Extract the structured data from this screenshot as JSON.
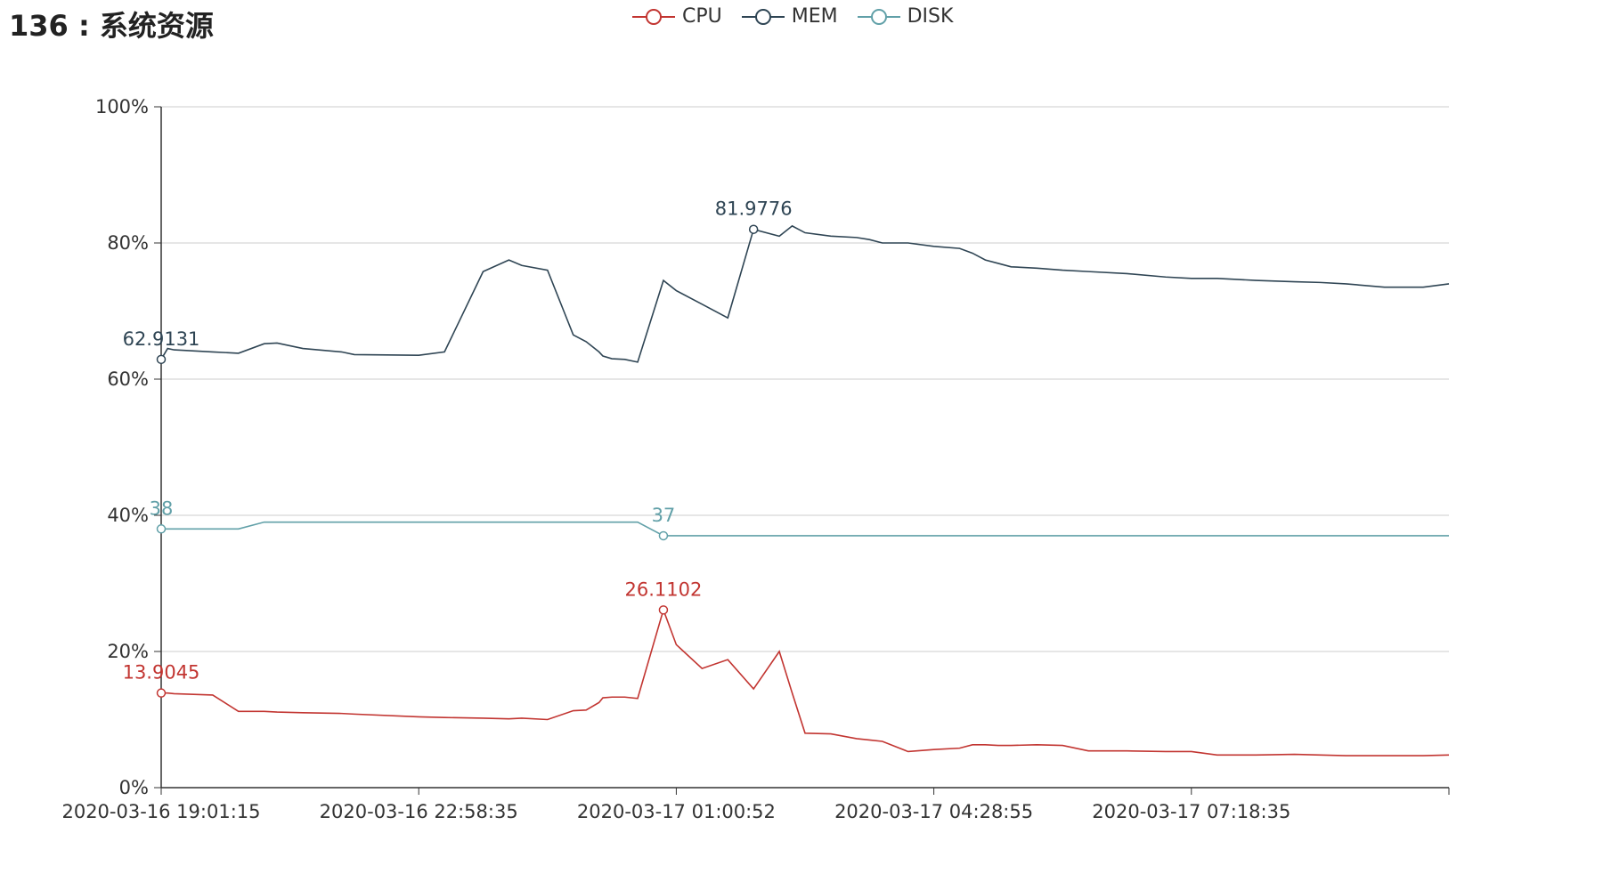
{
  "header": {
    "title": "136 : 系统资源"
  },
  "legend": [
    {
      "name": "CPU",
      "color": "#c23531"
    },
    {
      "name": "MEM",
      "color": "#2f4554"
    },
    {
      "name": "DISK",
      "color": "#61a0a8"
    }
  ],
  "chart_data": {
    "type": "line",
    "title": "136 : 系统资源",
    "xlabel": "",
    "ylabel": "",
    "ylim": [
      0,
      100
    ],
    "y_ticks": [
      "0%",
      "20%",
      "40%",
      "60%",
      "80%",
      "100%"
    ],
    "x_tick_labels": [
      "2020-03-16 19:01:15",
      "2020-03-16 22:58:35",
      "2020-03-17 01:00:52",
      "2020-03-17 04:28:55",
      "2020-03-17 07:18:35"
    ],
    "x": [
      0,
      0.5,
      1,
      4,
      6,
      8,
      9,
      11,
      14,
      15,
      20,
      22,
      25,
      27,
      28,
      30,
      32,
      33,
      34,
      34.3,
      35,
      36,
      37,
      39,
      40,
      42,
      44,
      46,
      48,
      49,
      50,
      52,
      54,
      55,
      56,
      58,
      60,
      62,
      63,
      64,
      65,
      66,
      68,
      70,
      72,
      75,
      78,
      80,
      82,
      85,
      88,
      90,
      92,
      95,
      98,
      100
    ],
    "series": [
      {
        "name": "CPU",
        "color": "#c23531",
        "values": [
          13.9,
          13.9,
          13.8,
          13.6,
          11.2,
          11.2,
          11.1,
          11.0,
          10.9,
          10.8,
          10.4,
          10.3,
          10.2,
          10.1,
          10.2,
          10.0,
          11.3,
          11.4,
          12.5,
          13.2,
          13.3,
          13.3,
          13.1,
          26.1,
          21.0,
          17.5,
          18.8,
          14.5,
          20.0,
          13.9,
          8.0,
          7.9,
          7.2,
          7.0,
          6.8,
          5.3,
          5.6,
          5.8,
          6.3,
          6.3,
          6.2,
          6.2,
          6.3,
          6.2,
          5.4,
          5.4,
          5.3,
          5.3,
          4.8,
          4.8,
          4.9,
          4.8,
          4.7,
          4.7,
          4.7,
          4.8
        ],
        "labels": [
          {
            "index": 0,
            "text": "13.9045"
          },
          {
            "index": 23,
            "text": "26.1102"
          }
        ]
      },
      {
        "name": "MEM",
        "color": "#2f4554",
        "values": [
          62.9,
          64.5,
          64.3,
          64.0,
          63.8,
          65.2,
          65.3,
          64.5,
          64.0,
          63.6,
          63.5,
          64.0,
          75.8,
          77.5,
          76.7,
          76.0,
          66.5,
          65.5,
          64.0,
          63.4,
          63.0,
          62.9,
          62.5,
          74.5,
          73.0,
          71.0,
          69.0,
          82.0,
          81.0,
          82.5,
          81.5,
          81.0,
          80.8,
          80.5,
          80.0,
          80.0,
          79.5,
          79.2,
          78.5,
          77.5,
          77.0,
          76.5,
          76.3,
          76.0,
          75.8,
          75.5,
          75.0,
          74.8,
          74.8,
          74.5,
          74.3,
          74.2,
          74.0,
          73.5,
          73.5,
          74.0
        ],
        "labels": [
          {
            "index": 0,
            "text": "62.9131"
          },
          {
            "index": 27,
            "text": "81.9776"
          }
        ]
      },
      {
        "name": "DISK",
        "color": "#61a0a8",
        "values": [
          38,
          38,
          38,
          38,
          38,
          39,
          39,
          39,
          39,
          39,
          39,
          39,
          39,
          39,
          39,
          39,
          39,
          39,
          39,
          39,
          39,
          39,
          39,
          37,
          37,
          37,
          37,
          37,
          37,
          37,
          37,
          37,
          37,
          37,
          37,
          37,
          37,
          37,
          37,
          37,
          37,
          37,
          37,
          37,
          37,
          37,
          37,
          37,
          37,
          37,
          37,
          37,
          37,
          37,
          37,
          37
        ],
        "labels": [
          {
            "index": 0,
            "text": "38"
          },
          {
            "index": 23,
            "text": "37"
          }
        ]
      }
    ]
  }
}
